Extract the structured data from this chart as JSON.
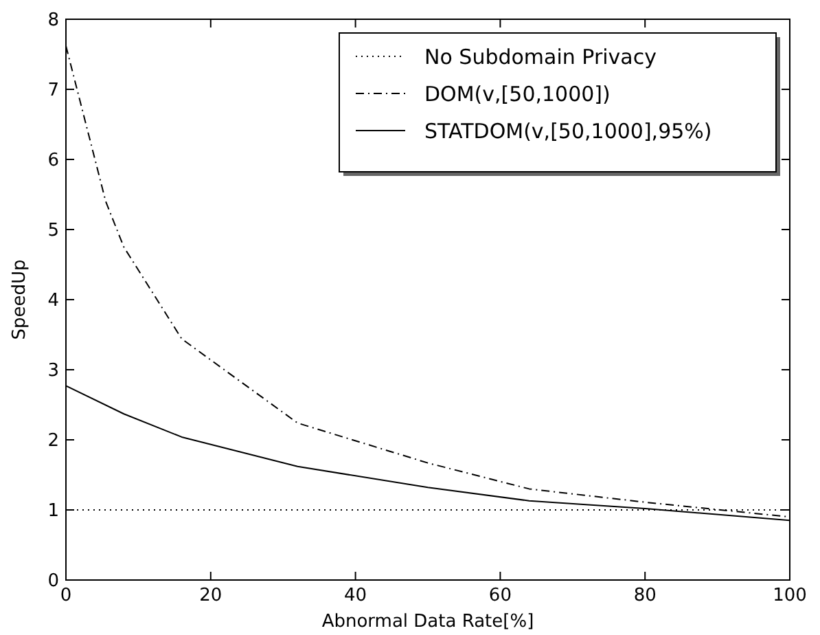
{
  "chart_data": {
    "type": "line",
    "xlabel": "Abnormal Data Rate[%]",
    "ylabel": "SpeedUp",
    "xlim": [
      0,
      100
    ],
    "ylim": [
      0,
      8
    ],
    "xticks": [
      0,
      20,
      40,
      60,
      80,
      100
    ],
    "yticks": [
      0,
      1,
      2,
      3,
      4,
      5,
      6,
      7,
      8
    ],
    "legend": "top right",
    "grid": false,
    "marker": "none",
    "series": [
      {
        "name": "No Subdomain Privacy",
        "color": "#000000",
        "line_style": "dotted",
        "x": [
          0,
          100
        ],
        "values": [
          1,
          1
        ]
      },
      {
        "name": "DOM(v,[50,1000])",
        "color": "#000000",
        "line_style": "dashdot",
        "x": [
          0,
          5.5,
          8,
          16,
          32,
          50,
          64,
          80,
          100
        ],
        "values": [
          7.62,
          5.4,
          4.75,
          3.44,
          2.24,
          1.67,
          1.3,
          1.11,
          0.9
        ]
      },
      {
        "name": "STATDOM(v,[50,1000],95%)",
        "color": "#000000",
        "line_style": "solid",
        "x": [
          0,
          8,
          16,
          32,
          50,
          64,
          80,
          100
        ],
        "values": [
          2.77,
          2.37,
          2.04,
          1.62,
          1.32,
          1.13,
          1.02,
          0.85
        ]
      }
    ]
  }
}
